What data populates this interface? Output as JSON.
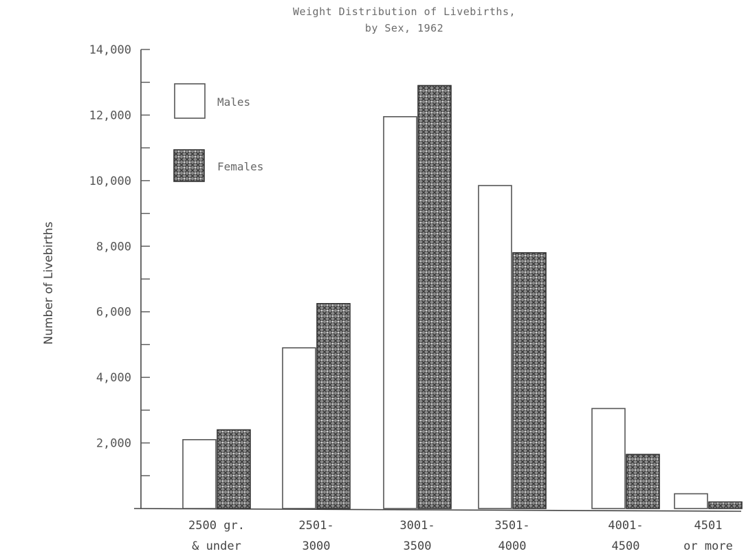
{
  "chart_data": {
    "type": "bar",
    "title": "Weight Distribution of Livebirths,",
    "subtitle": "by Sex, 1962",
    "ylabel": "Number of Livebirths",
    "xlabel": "",
    "ylim": [
      0,
      14000
    ],
    "yticks": [
      0,
      1000,
      2000,
      3000,
      4000,
      5000,
      6000,
      7000,
      8000,
      9000,
      10000,
      11000,
      12000,
      13000,
      14000
    ],
    "ytick_labels": [
      {
        "value": 2000,
        "label": "2,000"
      },
      {
        "value": 4000,
        "label": "4,000"
      },
      {
        "value": 6000,
        "label": "6,000"
      },
      {
        "value": 8000,
        "label": "8,000"
      },
      {
        "value": 10000,
        "label": "10,000"
      },
      {
        "value": 12000,
        "label": "12,000"
      },
      {
        "value": 14000,
        "label": "14,000"
      }
    ],
    "categories": [
      [
        "2500 gr.",
        "& under"
      ],
      [
        "2501-",
        "3000"
      ],
      [
        "3001-",
        "3500"
      ],
      [
        "3501-",
        "4000"
      ],
      [
        "4001-",
        "4500"
      ],
      [
        "4501",
        "or more"
      ]
    ],
    "series": [
      {
        "name": "Males",
        "values": [
          2100,
          4900,
          11950,
          9850,
          3050,
          450
        ],
        "color": "#ffffff"
      },
      {
        "name": "Females",
        "values": [
          2400,
          6250,
          12900,
          7800,
          1650,
          200
        ],
        "color": "#5a5a5a"
      }
    ],
    "legend_position": "top-left",
    "grid": false
  }
}
